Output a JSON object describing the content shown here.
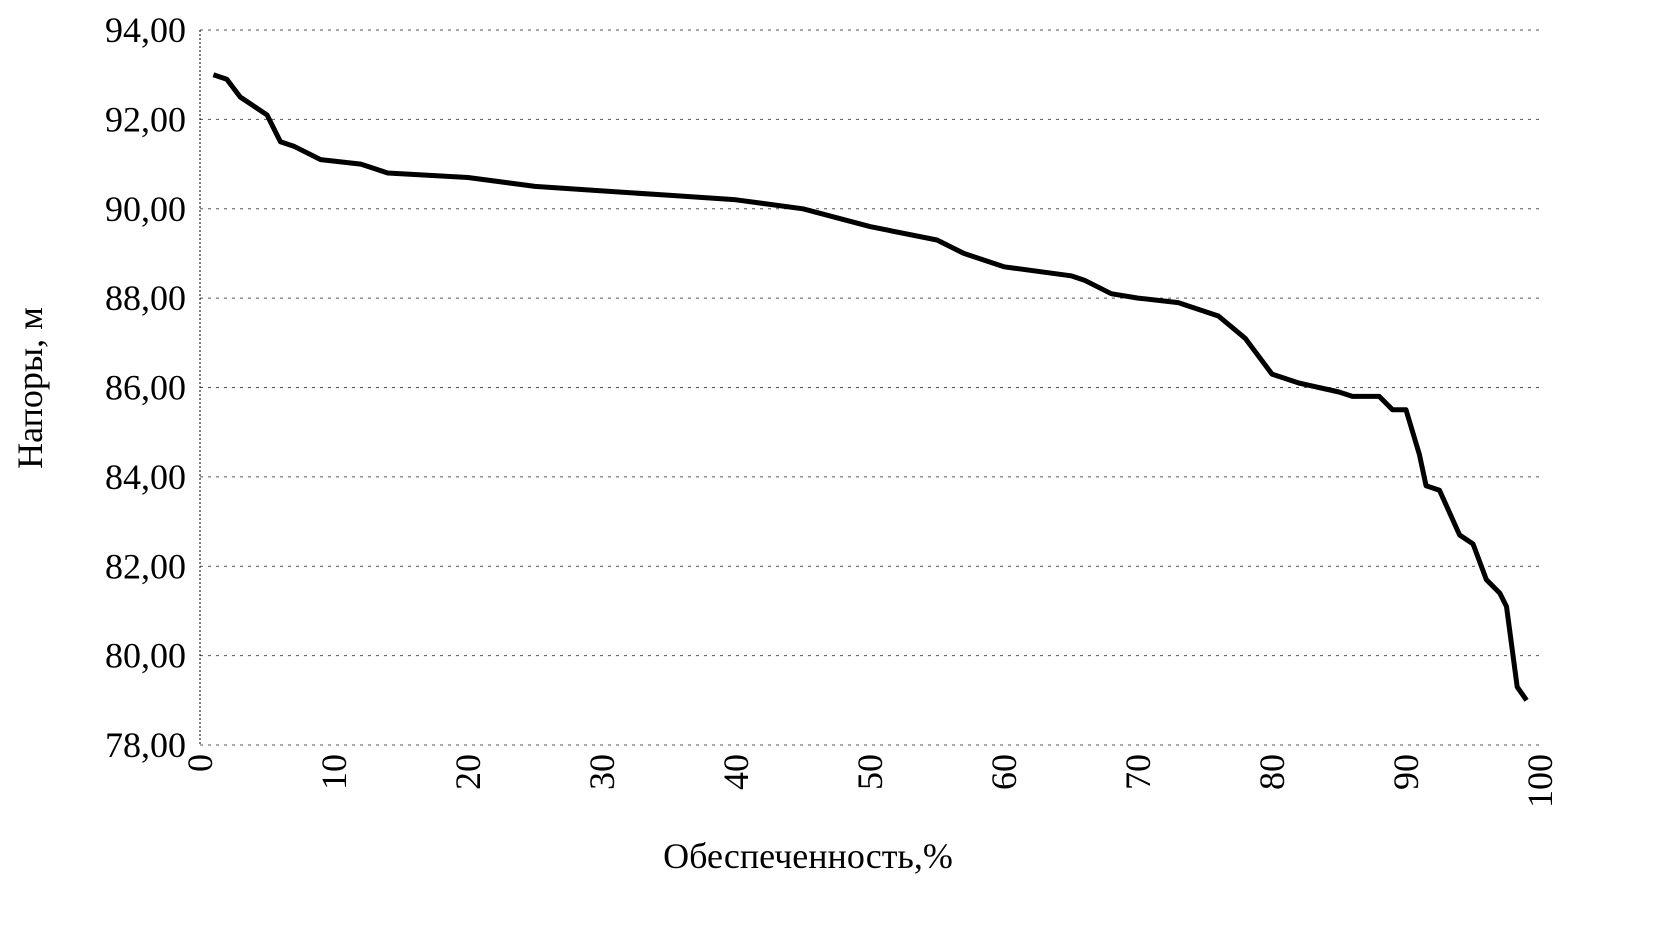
{
  "chart_data": {
    "type": "line",
    "title": "",
    "xlabel": "Обеспеченность,%",
    "ylabel": "Напоры, м",
    "xlim": [
      0,
      100
    ],
    "ylim": [
      78,
      94
    ],
    "grid": true,
    "x_ticks": [
      "0",
      "10",
      "20",
      "30",
      "40",
      "50",
      "60",
      "70",
      "80",
      "90",
      "100"
    ],
    "y_ticks": [
      "78,00",
      "80,00",
      "82,00",
      "84,00",
      "86,00",
      "88,00",
      "90,00",
      "92,00",
      "94,00"
    ],
    "line_color": "#000000",
    "series": [
      {
        "x": [
          1,
          2,
          3,
          5,
          6,
          7,
          9,
          12,
          13,
          14,
          20,
          25,
          30,
          35,
          40,
          45,
          50,
          55,
          57,
          60,
          65,
          66,
          68,
          70,
          73,
          76,
          78,
          80,
          82,
          85,
          86,
          88,
          89,
          90,
          91,
          91.5,
          92.5,
          94,
          95,
          96,
          97,
          97.5,
          98.3,
          99
        ],
        "y": [
          93.0,
          92.9,
          92.5,
          92.1,
          91.5,
          91.4,
          91.1,
          91.0,
          90.9,
          90.8,
          90.7,
          90.5,
          90.4,
          90.3,
          90.2,
          90.0,
          89.6,
          89.3,
          89.0,
          88.7,
          88.5,
          88.4,
          88.1,
          88.0,
          87.9,
          87.6,
          87.1,
          86.3,
          86.1,
          85.9,
          85.8,
          85.8,
          85.5,
          85.5,
          84.5,
          83.8,
          83.7,
          82.7,
          82.5,
          81.7,
          81.4,
          81.1,
          79.3,
          79.0
        ]
      }
    ]
  }
}
